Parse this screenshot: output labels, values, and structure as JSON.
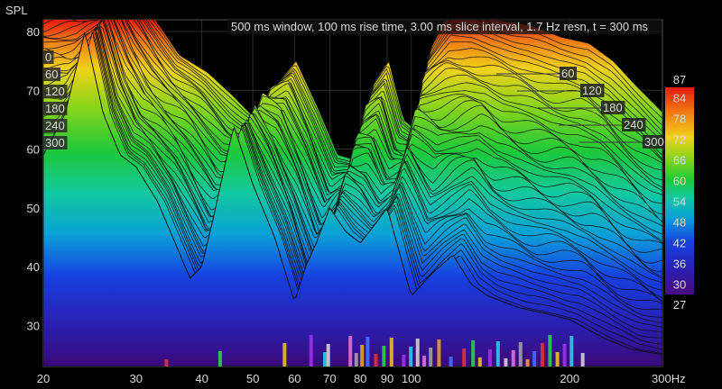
{
  "chart_data": {
    "type": "area",
    "title": "500 ms window, 100 ms rise time, 3.00 ms slice interval, 1.7 Hz resn, t = 300 ms",
    "ylabel": "SPL",
    "xlabel": "Hz",
    "x_scale": "log",
    "xlim": [
      20,
      300
    ],
    "ylim": [
      23,
      82
    ],
    "x_ticks": [
      20,
      30,
      40,
      50,
      60,
      70,
      80,
      90,
      100,
      200,
      300
    ],
    "x_tick_labels": [
      "20",
      "30",
      "40",
      "50",
      "60",
      "70",
      "80",
      "90",
      "100",
      "200",
      "300Hz"
    ],
    "y_ticks": [
      30,
      40,
      50,
      60,
      70,
      80
    ],
    "time_ticks_left": [
      "0",
      "60",
      "120",
      "180",
      "240",
      "300"
    ],
    "time_ticks_right": [
      "60",
      "120",
      "180",
      "240",
      "300"
    ],
    "colorbar": {
      "min": 27,
      "max": 87,
      "ticks": [
        30,
        36,
        42,
        48,
        54,
        60,
        66,
        72,
        78,
        84
      ],
      "min_label": "27",
      "max_label": "87"
    },
    "front_slice": {
      "name": "t = 0 ms",
      "x": [
        20,
        22,
        24,
        26,
        28,
        30,
        33,
        36,
        38,
        40,
        42,
        46,
        50,
        55,
        60,
        63,
        66,
        70,
        75,
        80,
        85,
        90,
        100,
        110,
        120,
        130,
        140,
        160,
        180,
        200,
        230,
        260,
        300
      ],
      "y": [
        59,
        66,
        80,
        66,
        59,
        57,
        51,
        43,
        38,
        40,
        48,
        64,
        54,
        45,
        34,
        40,
        44,
        50,
        46,
        44,
        47,
        50,
        35,
        39,
        42,
        37,
        35,
        33,
        32,
        31,
        28,
        26,
        25
      ]
    },
    "back_slice": {
      "name": "t = 300 ms",
      "x": [
        24,
        26,
        28,
        30,
        34,
        38,
        42,
        46,
        50,
        55,
        60,
        66,
        70,
        75,
        80,
        85,
        90,
        100,
        110,
        120,
        140,
        160,
        180,
        200,
        220,
        250,
        280
      ],
      "y": [
        82,
        79,
        75,
        71,
        68,
        64,
        60,
        66,
        70,
        62,
        54,
        53,
        66,
        70,
        60,
        58,
        72,
        80,
        79,
        77,
        76,
        74,
        73,
        70,
        66,
        61,
        58
      ]
    }
  }
}
